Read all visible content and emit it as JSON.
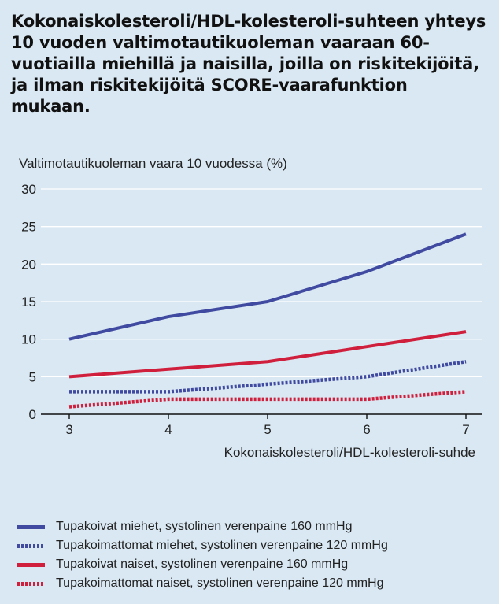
{
  "title": "Kokonaiskolesteroli/HDL-kolesteroli-suhteen yhteys 10 vuoden valtimotautikuoleman vaaraan 60-vuotiailla miehillä ja naisilla, joilla on riskitekijöitä, ja ilman riskitekijöitä SCORE-vaarafunktion mukaan.",
  "chart_data": {
    "type": "line",
    "ylabel": "Valtimotautikuoleman vaara 10 vuodessa (%)",
    "xlabel": "Kokonaiskolesteroli/HDL-kolesteroli-suhde",
    "x": [
      3,
      4,
      5,
      6,
      7
    ],
    "xlim": [
      3,
      7
    ],
    "ylim": [
      0,
      30
    ],
    "yticks": [
      0,
      5,
      10,
      15,
      20,
      25,
      30
    ],
    "grid": true,
    "legend": "bottom",
    "series": [
      {
        "name": "Tupakoivat miehet, systolinen verenpaine 160 mmHg",
        "values": [
          10,
          13,
          15,
          19,
          24
        ],
        "color": "#3f4aa0",
        "style": "solid"
      },
      {
        "name": "Tupakoimattomat miehet, systolinen verenpaine 120 mmHg",
        "values": [
          3,
          3,
          4,
          5,
          7
        ],
        "color": "#3f4aa0",
        "style": "dotted"
      },
      {
        "name": "Tupakoivat naiset, systolinen verenpaine 160 mmHg",
        "values": [
          5,
          6,
          7,
          9,
          11
        ],
        "color": "#d01f3c",
        "style": "solid"
      },
      {
        "name": "Tupakoimattomat naiset, systolinen verenpaine 120 mmHg",
        "values": [
          1,
          2,
          2,
          2,
          3
        ],
        "color": "#d01f3c",
        "style": "dotted"
      }
    ]
  }
}
